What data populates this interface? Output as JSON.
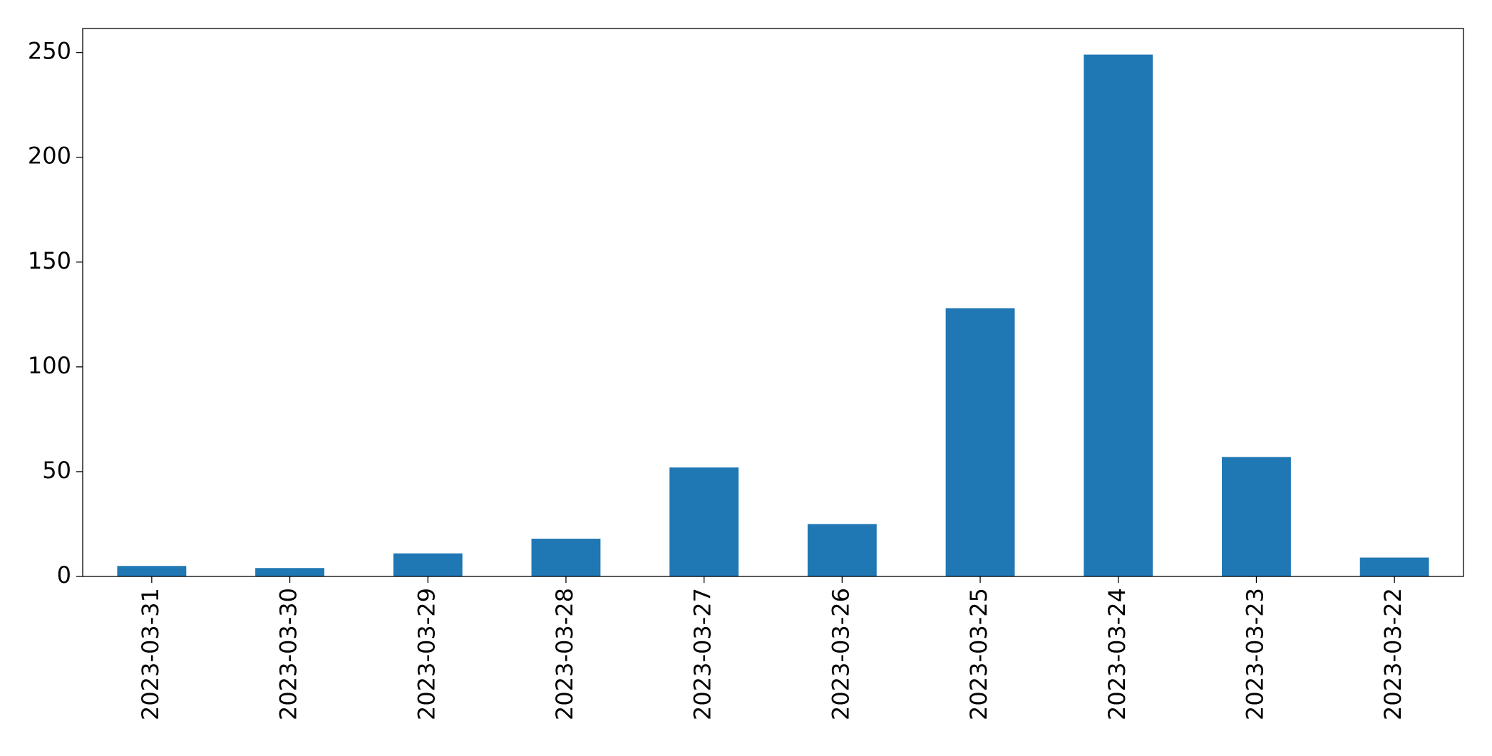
{
  "chart_data": {
    "type": "bar",
    "categories": [
      "2023-03-31",
      "2023-03-30",
      "2023-03-29",
      "2023-03-28",
      "2023-03-27",
      "2023-03-26",
      "2023-03-25",
      "2023-03-24",
      "2023-03-23",
      "2023-03-22"
    ],
    "values": [
      5,
      4,
      11,
      18,
      52,
      25,
      128,
      249,
      57,
      9
    ],
    "color": "#1f77b4",
    "ylim": [
      0,
      261.45
    ],
    "yticks": [
      0,
      50,
      100,
      150,
      200,
      250
    ],
    "grid": false
  }
}
